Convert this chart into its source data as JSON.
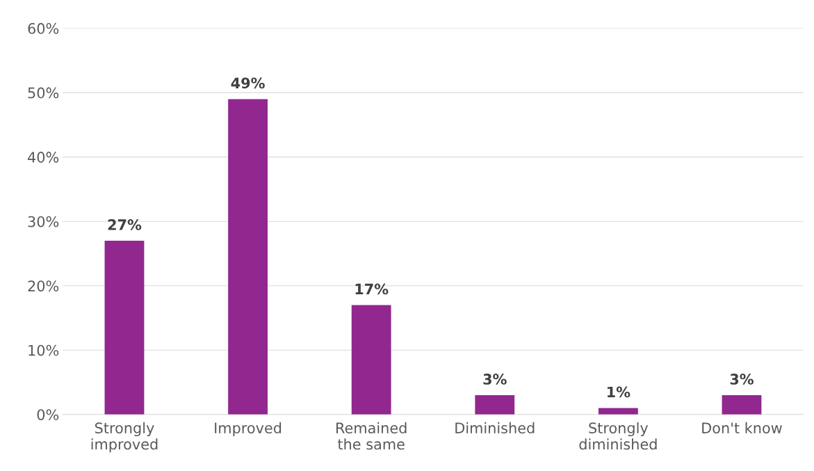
{
  "chart_data": {
    "type": "bar",
    "categories": [
      "Strongly\nimproved",
      "Improved",
      "Remained\nthe same",
      "Diminished",
      "Strongly\ndiminished",
      "Don't know"
    ],
    "values": [
      27,
      49,
      17,
      3,
      1,
      3
    ],
    "color": "#92278f",
    "value_labels": [
      "27%",
      "49%",
      "17%",
      "3%",
      "1%",
      "3%"
    ],
    "ylim": [
      0,
      60
    ],
    "yticks": [
      {
        "value": 0,
        "label": "0%"
      },
      {
        "value": 10,
        "label": "10%"
      },
      {
        "value": 20,
        "label": "20%"
      },
      {
        "value": 30,
        "label": "30%"
      },
      {
        "value": 40,
        "label": "40%"
      },
      {
        "value": 50,
        "label": "50%"
      },
      {
        "value": 60,
        "label": "60%"
      }
    ],
    "grid": "y"
  }
}
